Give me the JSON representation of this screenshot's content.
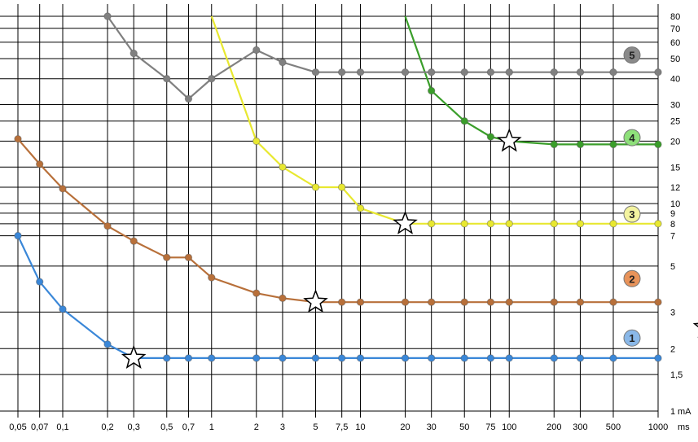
{
  "chart_data": {
    "type": "line",
    "x_scale": "log",
    "y_scale": "log",
    "xlim": [
      0.05,
      1000
    ],
    "ylim": [
      1,
      80
    ],
    "x_tick_labels": [
      {
        "value": 0.05,
        "label": "0,05"
      },
      {
        "value": 0.07,
        "label": "0,07"
      },
      {
        "value": 0.1,
        "label": "0,1"
      },
      {
        "value": 0.2,
        "label": "0,2"
      },
      {
        "value": 0.3,
        "label": "0,3"
      },
      {
        "value": 0.5,
        "label": "0,5"
      },
      {
        "value": 0.7,
        "label": "0,7"
      },
      {
        "value": 1,
        "label": "1"
      },
      {
        "value": 2,
        "label": "2"
      },
      {
        "value": 3,
        "label": "3"
      },
      {
        "value": 5,
        "label": "5"
      },
      {
        "value": 7.5,
        "label": "7,5"
      },
      {
        "value": 10,
        "label": "10"
      },
      {
        "value": 20,
        "label": "20"
      },
      {
        "value": 30,
        "label": "30"
      },
      {
        "value": 50,
        "label": "50"
      },
      {
        "value": 75,
        "label": "75"
      },
      {
        "value": 100,
        "label": "100"
      },
      {
        "value": 200,
        "label": "200"
      },
      {
        "value": 300,
        "label": "300"
      },
      {
        "value": 500,
        "label": "500"
      },
      {
        "value": 1000,
        "label": "1000"
      }
    ],
    "x_unit": "ms",
    "y_tick_labels": [
      {
        "value": 1,
        "label": "1"
      },
      {
        "value": 1.5,
        "label": "1,5"
      },
      {
        "value": 2,
        "label": "2"
      },
      {
        "value": 3,
        "label": "3"
      },
      {
        "value": 5,
        "label": "5"
      },
      {
        "value": 7,
        "label": "7"
      },
      {
        "value": 8,
        "label": "8"
      },
      {
        "value": 9,
        "label": "9"
      },
      {
        "value": 10,
        "label": "10"
      },
      {
        "value": 12,
        "label": "12"
      },
      {
        "value": 15,
        "label": "15"
      },
      {
        "value": 20,
        "label": "20"
      },
      {
        "value": 25,
        "label": "25"
      },
      {
        "value": 30,
        "label": "30"
      },
      {
        "value": 40,
        "label": "40"
      },
      {
        "value": 50,
        "label": "50"
      },
      {
        "value": 60,
        "label": "60"
      },
      {
        "value": 70,
        "label": "70"
      },
      {
        "value": 80,
        "label": "80"
      }
    ],
    "y_unit": "mA",
    "grid": true,
    "series": [
      {
        "badge": "1",
        "color": "#3a87d8",
        "points": [
          [
            0.05,
            7
          ],
          [
            0.07,
            4.2
          ],
          [
            0.1,
            3.1
          ],
          [
            0.2,
            2.1
          ],
          [
            0.3,
            1.8
          ],
          [
            0.5,
            1.8
          ],
          [
            0.7,
            1.8
          ],
          [
            1,
            1.8
          ],
          [
            2,
            1.8
          ],
          [
            3,
            1.8
          ],
          [
            5,
            1.8
          ],
          [
            7.5,
            1.8
          ],
          [
            10,
            1.8
          ],
          [
            20,
            1.8
          ],
          [
            30,
            1.8
          ],
          [
            50,
            1.8
          ],
          [
            75,
            1.8
          ],
          [
            100,
            1.8
          ],
          [
            200,
            1.8
          ],
          [
            300,
            1.8
          ],
          [
            500,
            1.8
          ],
          [
            1000,
            1.8
          ]
        ],
        "marker": {
          "x": 0.3,
          "y": 1.8
        }
      },
      {
        "badge": "2",
        "color": "#b8703a",
        "points": [
          [
            0.05,
            20.5
          ],
          [
            0.07,
            15.5
          ],
          [
            0.1,
            11.8
          ],
          [
            0.2,
            7.8
          ],
          [
            0.3,
            6.6
          ],
          [
            0.5,
            5.5
          ],
          [
            0.7,
            5.5
          ],
          [
            1,
            4.4
          ],
          [
            2,
            3.7
          ],
          [
            3,
            3.5
          ],
          [
            5,
            3.35
          ],
          [
            7.5,
            3.35
          ],
          [
            10,
            3.35
          ],
          [
            20,
            3.35
          ],
          [
            30,
            3.35
          ],
          [
            50,
            3.35
          ],
          [
            75,
            3.35
          ],
          [
            100,
            3.35
          ],
          [
            200,
            3.35
          ],
          [
            300,
            3.35
          ],
          [
            500,
            3.35
          ],
          [
            1000,
            3.35
          ]
        ],
        "marker": {
          "x": 5,
          "y": 3.35
        }
      },
      {
        "badge": "3",
        "color": "#e8e830",
        "points": [
          [
            1,
            80
          ],
          [
            2,
            20
          ],
          [
            3,
            15
          ],
          [
            5,
            12
          ],
          [
            7.5,
            12
          ],
          [
            10,
            9.5
          ],
          [
            20,
            8
          ],
          [
            30,
            8
          ],
          [
            50,
            8
          ],
          [
            75,
            8
          ],
          [
            100,
            8
          ],
          [
            200,
            8
          ],
          [
            300,
            8
          ],
          [
            500,
            8
          ],
          [
            1000,
            8
          ]
        ],
        "marker": {
          "x": 20,
          "y": 8
        }
      },
      {
        "badge": "4",
        "color": "#3a9e2a",
        "points": [
          [
            20,
            80
          ],
          [
            30,
            35
          ],
          [
            50,
            25
          ],
          [
            75,
            21
          ],
          [
            100,
            20
          ],
          [
            200,
            19.3
          ],
          [
            300,
            19.3
          ],
          [
            500,
            19.3
          ],
          [
            1000,
            19.3
          ]
        ],
        "marker": {
          "x": 100,
          "y": 20
        }
      },
      {
        "badge": "5",
        "color": "#808080",
        "points": [
          [
            0.2,
            80
          ],
          [
            0.3,
            53
          ],
          [
            0.5,
            40
          ],
          [
            0.7,
            32
          ],
          [
            1,
            40
          ],
          [
            2,
            55
          ],
          [
            3,
            48
          ],
          [
            5,
            43
          ],
          [
            7.5,
            43
          ],
          [
            10,
            43
          ],
          [
            20,
            43
          ],
          [
            30,
            43
          ],
          [
            50,
            43
          ],
          [
            75,
            43
          ],
          [
            100,
            43
          ],
          [
            200,
            43
          ],
          [
            300,
            43
          ],
          [
            500,
            43
          ],
          [
            1000,
            43
          ]
        ],
        "marker": null
      }
    ],
    "badges": [
      {
        "label": "1",
        "y": 2.25,
        "fill": "#8ab8e8"
      },
      {
        "label": "2",
        "y": 4.35,
        "fill": "#e8935a"
      },
      {
        "label": "3",
        "y": 8.9,
        "fill": "#f4f4a0"
      },
      {
        "label": "4",
        "y": 20.8,
        "fill": "#8ee07a"
      },
      {
        "label": "5",
        "y": 52,
        "fill": "#8a8a8a"
      }
    ]
  }
}
